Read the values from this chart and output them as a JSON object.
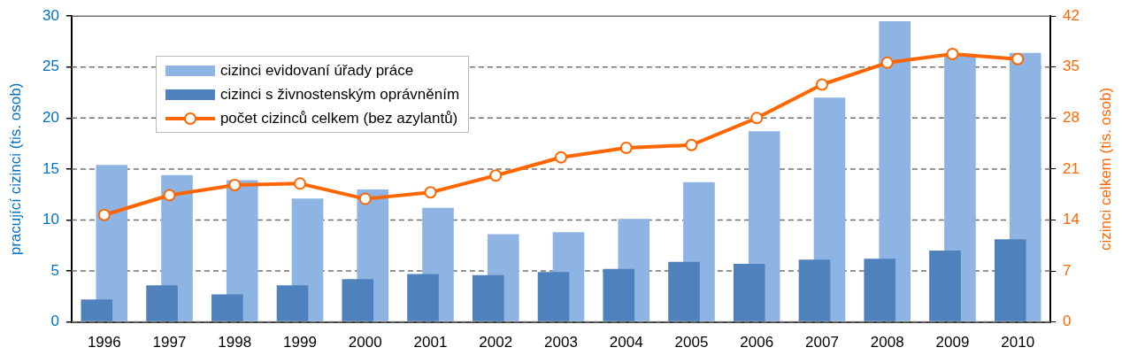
{
  "chart_data": {
    "type": "bar",
    "categories": [
      "1996",
      "1997",
      "1998",
      "1999",
      "2000",
      "2001",
      "2002",
      "2003",
      "2004",
      "2005",
      "2006",
      "2007",
      "2008",
      "2009",
      "2010"
    ],
    "series": [
      {
        "name": "cizinci evidovaní úřady práce",
        "color": "#8eb4e3",
        "values": [
          15.4,
          14.4,
          13.9,
          12.1,
          13.0,
          11.2,
          8.6,
          8.8,
          10.1,
          13.7,
          18.7,
          22.0,
          29.5,
          26.2,
          26.4
        ]
      },
      {
        "name": "cizinci s živnostenským oprávněním",
        "color": "#4f81bd",
        "values": [
          2.2,
          3.6,
          2.7,
          3.6,
          4.2,
          4.7,
          4.6,
          4.9,
          5.2,
          5.9,
          5.7,
          6.1,
          6.2,
          7.0,
          8.1
        ]
      },
      {
        "name": "počet cizinců celkem (bez azylantů)",
        "color": "#ff6600",
        "type": "line",
        "axis": "y2",
        "marker": "circle",
        "values": [
          14.7,
          17.4,
          18.8,
          19.0,
          16.9,
          17.8,
          20.1,
          22.6,
          23.9,
          24.3,
          28.0,
          32.6,
          35.6,
          36.8,
          36.1
        ]
      }
    ],
    "ylabel": "pracující cizinci  (tis. osob)",
    "y2label": "cizinci celkem  (tis. osob)",
    "ylim": [
      0,
      30
    ],
    "yticks": [
      0,
      5,
      10,
      15,
      20,
      25,
      30
    ],
    "y2lim": [
      0,
      42
    ],
    "y2ticks": [
      0,
      7,
      14,
      21,
      28,
      35,
      42
    ],
    "grid": "y",
    "legend": "top left"
  }
}
